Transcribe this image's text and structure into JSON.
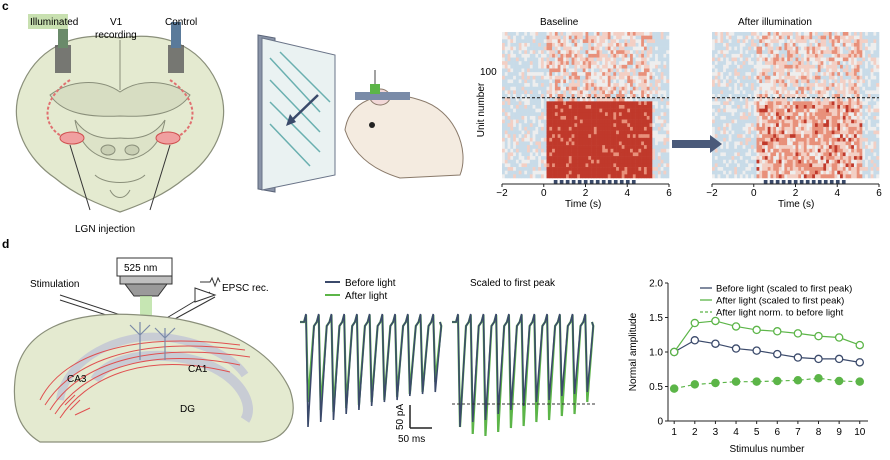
{
  "panel_c": {
    "label": "c",
    "brain": {
      "illuminated": "Illuminated",
      "v1_recording": "V1",
      "v1_recording2": "recording",
      "control": "Control",
      "lgn_injection": "LGN injection"
    },
    "heatmaps": {
      "baseline_title": "Baseline",
      "after_title": "After illumination",
      "ylabel": "Unit number",
      "ytick": "100",
      "xlabel": "Time (s)",
      "xticks": [
        "−2",
        "0",
        "2",
        "4",
        "6"
      ]
    }
  },
  "panel_d": {
    "label": "d",
    "setup": {
      "wavelength": "525 nm",
      "stimulation": "Stimulation",
      "epsc": "EPSC rec.",
      "ca1": "CA1",
      "ca3": "CA3",
      "dg": "DG"
    },
    "traces": {
      "legend_before": "Before light",
      "legend_after": "After light",
      "scaled_title": "Scaled to first peak",
      "scale_amp": "50 pA",
      "scale_time": "50 ms"
    },
    "colors": {
      "before": "#3b4a6b",
      "after": "#5cb548"
    }
  },
  "chart_data": {
    "type": "line",
    "ylabel": "Normal amplitude",
    "xlabel": "Stimulus number",
    "x": [
      1,
      2,
      3,
      4,
      5,
      6,
      7,
      8,
      9,
      10
    ],
    "xticks": [
      "1",
      "2",
      "3",
      "4",
      "5",
      "6",
      "7",
      "8",
      "9",
      "10"
    ],
    "yticks": [
      "0",
      "0.5",
      "1.0",
      "1.5",
      "2.0"
    ],
    "ylim": [
      0,
      2.0
    ],
    "legend_position": "top-right",
    "series": [
      {
        "name": "Before light (scaled to first peak)",
        "color": "#3b4a6b",
        "marker": "open-circle",
        "dash": false,
        "values": [
          1.0,
          1.17,
          1.12,
          1.05,
          1.02,
          0.97,
          0.92,
          0.9,
          0.9,
          0.85
        ]
      },
      {
        "name": "After light (scaled to first peak)",
        "color": "#5cb548",
        "marker": "open-circle",
        "dash": false,
        "values": [
          1.0,
          1.42,
          1.45,
          1.37,
          1.32,
          1.3,
          1.27,
          1.23,
          1.21,
          1.1
        ]
      },
      {
        "name": "After light norm. to before light",
        "color": "#5cb548",
        "marker": "filled-circle",
        "dash": true,
        "values": [
          0.47,
          0.53,
          0.55,
          0.57,
          0.57,
          0.58,
          0.59,
          0.62,
          0.58,
          0.57
        ]
      }
    ]
  }
}
